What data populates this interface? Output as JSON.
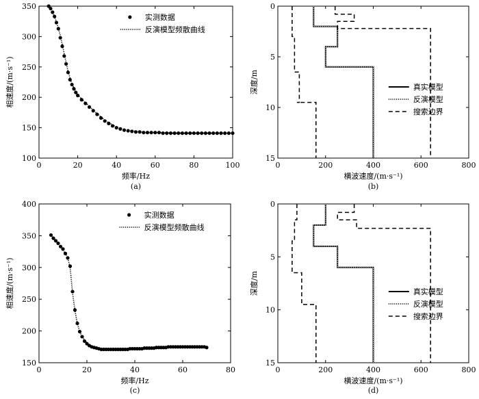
{
  "chart_data": [
    {
      "panel": "(a)",
      "type": "scatter",
      "xlabel": "频率/Hz",
      "ylabel": "相速度/(m·s⁻¹)",
      "xlim": [
        0,
        100
      ],
      "ylim": [
        100,
        350
      ],
      "xticks": [
        0,
        20,
        40,
        60,
        80,
        100
      ],
      "yticks": [
        100,
        150,
        200,
        250,
        300,
        350
      ],
      "legend": {
        "placement": "top-right",
        "entries": [
          "实测数据",
          "反演模型频散曲线"
        ]
      },
      "series": [
        {
          "name": "实测数据",
          "style": "markers",
          "x": [
            5,
            6,
            7,
            8,
            9,
            10,
            11,
            12,
            13,
            14,
            15,
            16,
            17,
            18,
            19,
            20,
            22,
            24,
            26,
            28,
            30,
            32,
            34,
            36,
            38,
            40,
            42,
            44,
            46,
            48,
            50,
            52,
            54,
            56,
            58,
            60,
            62,
            64,
            66,
            68,
            70,
            72,
            74,
            76,
            78,
            80,
            82,
            84,
            86,
            88,
            90,
            92,
            94,
            96,
            98,
            100
          ],
          "y": [
            350,
            346,
            340,
            333,
            323,
            313,
            298,
            284,
            268,
            255,
            241,
            229,
            221,
            214,
            208,
            203,
            196,
            190,
            184,
            178,
            172,
            166,
            161,
            157,
            153,
            150,
            148,
            146,
            145,
            144,
            143,
            143,
            142,
            142,
            142,
            142,
            142,
            141,
            141,
            141,
            141,
            141,
            141,
            141,
            141,
            141,
            141,
            141,
            141,
            141,
            141,
            141,
            141,
            141,
            141,
            141
          ]
        },
        {
          "name": "反演模型频散曲线",
          "style": "dotted",
          "x": [
            5,
            7,
            9,
            11,
            13,
            15,
            17,
            19,
            22,
            26,
            30,
            35,
            40,
            45,
            50,
            55,
            60,
            70,
            80,
            90,
            100
          ],
          "y": [
            350,
            341,
            324,
            302,
            272,
            243,
            222,
            209,
            197,
            185,
            173,
            160,
            151,
            146,
            144,
            142,
            142,
            141,
            141,
            141,
            141
          ]
        }
      ]
    },
    {
      "panel": "(b)",
      "type": "line",
      "xlabel": "横波速度/(m·s⁻¹)",
      "ylabel": "深度/m",
      "xlim": [
        0,
        800
      ],
      "ylim": [
        15,
        0
      ],
      "xticks": [
        0,
        200,
        400,
        600,
        800
      ],
      "yticks": [
        0,
        5,
        10,
        15
      ],
      "legend": {
        "placement": "bottom-right",
        "entries": [
          "真实模型",
          "反演模型",
          "搜索边界"
        ]
      },
      "series": [
        {
          "name": "真实模型",
          "style": "solid",
          "x": [
            150,
            150,
            250,
            250,
            200,
            200,
            400,
            400
          ],
          "y": [
            0,
            2,
            2,
            4,
            4,
            6,
            6,
            15
          ]
        },
        {
          "name": "反演模型",
          "style": "dotted",
          "x": [
            150,
            150,
            250,
            250,
            200,
            200,
            400,
            400
          ],
          "y": [
            0,
            2,
            2,
            4,
            4,
            6,
            6,
            15
          ]
        },
        {
          "name": "搜索边界",
          "style": "dashed",
          "x": [
            60,
            60,
            70,
            70,
            90,
            90,
            80,
            80,
            160,
            160
          ],
          "y": [
            0,
            3,
            3,
            6.5,
            6.5,
            9.5,
            9.5,
            9.5,
            9.5,
            15
          ]
        },
        {
          "name": "搜索边界",
          "style": "dashed",
          "x": [
            240,
            240,
            320,
            320,
            250,
            250,
            320,
            320,
            640,
            640
          ],
          "y": [
            0,
            0.8,
            0.8,
            1.5,
            1.5,
            2.2,
            2.2,
            2.2,
            2.2,
            15
          ]
        }
      ]
    },
    {
      "panel": "(c)",
      "type": "scatter",
      "xlabel": "频率/Hz",
      "ylabel": "相速度/(m·s⁻¹)",
      "xlim": [
        0,
        80
      ],
      "ylim": [
        150,
        400
      ],
      "xticks": [
        0,
        20,
        40,
        60,
        80
      ],
      "yticks": [
        150,
        200,
        250,
        300,
        350,
        400
      ],
      "legend": {
        "placement": "top-right",
        "entries": [
          "实测数据",
          "反演模型频散曲线"
        ]
      },
      "series": [
        {
          "name": "实测数据",
          "style": "markers",
          "x": [
            5,
            6,
            7,
            8,
            9,
            10,
            11,
            12,
            13,
            14,
            15,
            16,
            17,
            18,
            19,
            20,
            21,
            22,
            23,
            24,
            25,
            26,
            27,
            28,
            29,
            30,
            31,
            32,
            33,
            34,
            35,
            36,
            37,
            38,
            39,
            40,
            41,
            42,
            43,
            44,
            45,
            46,
            47,
            48,
            49,
            50,
            51,
            52,
            53,
            54,
            55,
            56,
            57,
            58,
            59,
            60,
            61,
            62,
            63,
            64,
            65,
            66,
            67,
            68,
            69,
            70
          ],
          "y": [
            351,
            346,
            342,
            338,
            333,
            329,
            322,
            315,
            302,
            262,
            233,
            212,
            199,
            191,
            184,
            180,
            177,
            175,
            174,
            173,
            172,
            171,
            171,
            171,
            171,
            171,
            171,
            171,
            171,
            171,
            171,
            171,
            171,
            172,
            172,
            172,
            172,
            172,
            172,
            173,
            173,
            173,
            173,
            173,
            174,
            174,
            174,
            174,
            174,
            175,
            175,
            175,
            175,
            175,
            175,
            175,
            175,
            175,
            175,
            175,
            175,
            175,
            175,
            175,
            175,
            174
          ]
        },
        {
          "name": "反演模型频散曲线",
          "style": "dotted",
          "x": [
            5,
            7,
            9,
            11,
            12,
            13,
            14,
            15,
            16,
            17,
            18,
            20,
            22,
            25,
            30,
            40,
            50,
            60,
            70
          ],
          "y": [
            351,
            342,
            333,
            322,
            315,
            300,
            260,
            232,
            212,
            199,
            191,
            181,
            176,
            172,
            171,
            172,
            174,
            175,
            174
          ]
        }
      ]
    },
    {
      "panel": "(d)",
      "type": "line",
      "xlabel": "横波速度/(m·s⁻¹)",
      "ylabel": "深度/m",
      "xlim": [
        0,
        800
      ],
      "ylim": [
        15,
        0
      ],
      "xticks": [
        0,
        200,
        400,
        600,
        800
      ],
      "yticks": [
        0,
        5,
        10,
        15
      ],
      "legend": {
        "placement": "bottom-right",
        "entries": [
          "真实模型",
          "反演模型",
          "搜索边界"
        ]
      },
      "series": [
        {
          "name": "真实模型",
          "style": "solid",
          "x": [
            200,
            200,
            150,
            150,
            250,
            250,
            400,
            400
          ],
          "y": [
            0,
            2,
            2,
            4,
            4,
            6,
            6,
            15
          ]
        },
        {
          "name": "反演模型",
          "style": "dotted",
          "x": [
            200,
            200,
            150,
            150,
            250,
            250,
            400,
            400
          ],
          "y": [
            0,
            2,
            2,
            4,
            4,
            6,
            6,
            15
          ]
        },
        {
          "name": "搜索边界",
          "style": "dashed",
          "x": [
            80,
            80,
            70,
            70,
            60,
            60,
            100,
            100,
            160,
            160
          ],
          "y": [
            0,
            1.5,
            1.5,
            3.5,
            3.5,
            6.5,
            6.5,
            9.5,
            9.5,
            15
          ]
        },
        {
          "name": "搜索边界",
          "style": "dashed",
          "x": [
            320,
            320,
            250,
            250,
            330,
            330,
            640,
            640
          ],
          "y": [
            0,
            0.8,
            0.8,
            1.5,
            1.5,
            2.3,
            2.3,
            15
          ]
        }
      ]
    }
  ]
}
